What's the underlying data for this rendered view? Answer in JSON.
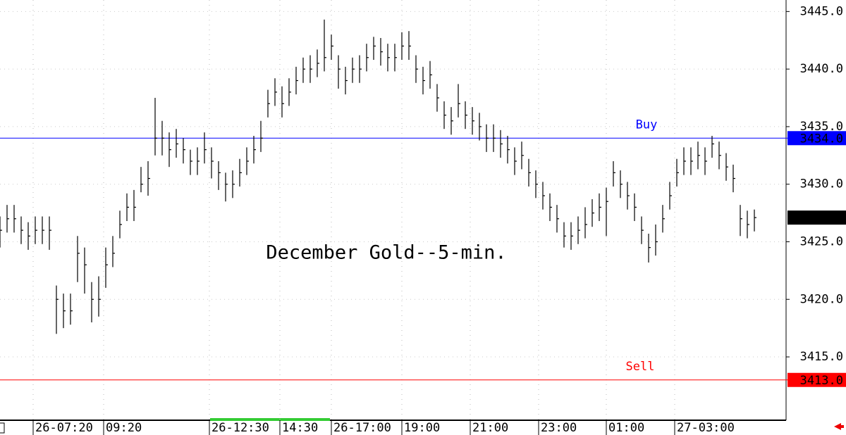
{
  "chart_data": {
    "type": "ohlc",
    "title": "December Gold--5-min.",
    "color": "#000000",
    "grid": true,
    "xlim": [
      0,
      111.5
    ],
    "ylim": [
      3409.5,
      3446
    ],
    "yticks": [
      {
        "value": 3415,
        "label": "3415.0"
      },
      {
        "value": 3420,
        "label": "3420.0"
      },
      {
        "value": 3425,
        "label": "3425.0"
      },
      {
        "value": 3430,
        "label": "3430.0"
      },
      {
        "value": 3435,
        "label": "3435.0"
      },
      {
        "value": 3440,
        "label": "3440.0"
      },
      {
        "value": 3445,
        "label": "3445.0"
      }
    ],
    "xticks": [
      {
        "value": 4.7,
        "label": "26-07:20"
      },
      {
        "value": 14.7,
        "label": "09:20"
      },
      {
        "value": 29.7,
        "label": "26-12:30"
      },
      {
        "value": 39.7,
        "label": "14:30"
      },
      {
        "value": 47,
        "label": "26-17:00"
      },
      {
        "value": 57,
        "label": "19:00"
      },
      {
        "value": 66.7,
        "label": "21:00"
      },
      {
        "value": 76.4,
        "label": "23:00"
      },
      {
        "value": 86,
        "label": "01:00"
      },
      {
        "value": 95.7,
        "label": "27-03:00"
      }
    ],
    "levels": [
      {
        "name": "Buy",
        "value": 3434,
        "label": "3434.0",
        "color": "#0000ff"
      },
      {
        "name": "Sell",
        "value": 3413,
        "label": "3413.0",
        "color": "#ff0000"
      }
    ],
    "last_price": {
      "value": 3427.1,
      "label": "3427.1"
    },
    "high": [
      3427.2,
      3428.2,
      3428.2,
      3427.2,
      3426.7,
      3427.2,
      3427.2,
      3427.2,
      3421.2,
      3420.5,
      3420.5,
      3425.5,
      3424.5,
      3421.5,
      3422,
      3424.5,
      3425.5,
      3427.7,
      3429.2,
      3429.5,
      3431.5,
      3432,
      3437.5,
      3435.5,
      3434.5,
      3434.8,
      3434,
      3433,
      3433.2,
      3434.5,
      3433.2,
      3432,
      3431,
      3431.2,
      3432.2,
      3433.2,
      3434.2,
      3435.5,
      3438.2,
      3439.2,
      3438.5,
      3439.2,
      3440.2,
      3441,
      3441.2,
      3441.7,
      3444.3,
      3443,
      3441.2,
      3440.2,
      3441,
      3441.2,
      3442.2,
      3442.8,
      3442.7,
      3442.2,
      3442.2,
      3443.2,
      3443.3,
      3441.2,
      3440.2,
      3440.7,
      3438.7,
      3437.2,
      3436.7,
      3438.7,
      3437.2,
      3436.7,
      3436.2,
      3435.2,
      3435.2,
      3434.7,
      3434.2,
      3433.2,
      3433.7,
      3432.2,
      3431.2,
      3430.2,
      3429.2,
      3428.2,
      3426.7,
      3426.7,
      3427.2,
      3428,
      3428.7,
      3429.2,
      3429.7,
      3432,
      3431.2,
      3430.2,
      3429.2,
      3427.2,
      3425.7,
      3426.5,
      3428.2,
      3430.2,
      3432.2,
      3433.2,
      3433.2,
      3433.7,
      3433.2,
      3434.2,
      3433.7,
      3432.7,
      3431.7,
      3428.2,
      3427.7,
      3427.8
    ],
    "low": [
      3424.5,
      3425.8,
      3425.8,
      3424.8,
      3424.3,
      3424.8,
      3424.8,
      3424.3,
      3417,
      3417.5,
      3417.8,
      3421.5,
      3420.5,
      3418,
      3418.5,
      3421,
      3422.8,
      3425.3,
      3426.8,
      3426.8,
      3429.3,
      3429,
      3432.5,
      3432.5,
      3431.5,
      3432.3,
      3431.8,
      3430.8,
      3430.8,
      3431.8,
      3430.5,
      3429.5,
      3428.5,
      3428.8,
      3429.8,
      3430.8,
      3431.8,
      3432.8,
      3435.8,
      3436.8,
      3435.8,
      3436.8,
      3437.8,
      3438.8,
      3438.8,
      3439.3,
      3439.8,
      3440.8,
      3438.3,
      3437.8,
      3438.8,
      3438.8,
      3439.8,
      3440.8,
      3440.3,
      3439.8,
      3439.8,
      3440.8,
      3440.8,
      3438.8,
      3437.8,
      3438.3,
      3436.3,
      3434.8,
      3434.3,
      3435.8,
      3434.8,
      3434.3,
      3433.8,
      3432.8,
      3432.8,
      3432.3,
      3431.8,
      3430.8,
      3431.3,
      3429.8,
      3428.8,
      3427.8,
      3426.8,
      3425.8,
      3424.5,
      3424.3,
      3424.8,
      3425.3,
      3426.3,
      3426.8,
      3425.5,
      3429.8,
      3428.8,
      3427.8,
      3426.8,
      3424.8,
      3423.2,
      3423.8,
      3425.8,
      3427.8,
      3429.8,
      3430.8,
      3430.8,
      3431.3,
      3430.8,
      3432.3,
      3431.3,
      3430.3,
      3429.3,
      3425.5,
      3425.3,
      3425.9
    ],
    "close": [
      3426,
      3427,
      3427,
      3426,
      3425.5,
      3426,
      3426,
      3426,
      3420,
      3419,
      3419,
      3424,
      3423,
      3420,
      3420,
      3423,
      3424,
      3426.5,
      3428,
      3428,
      3430,
      3430.5,
      3434,
      3434,
      3433,
      3433.5,
      3433,
      3432,
      3432,
      3433,
      3432,
      3431,
      3430,
      3430,
      3431,
      3432,
      3433,
      3434,
      3437,
      3438,
      3437,
      3438,
      3439,
      3440,
      3440,
      3440.5,
      3441,
      3442,
      3440,
      3439,
      3440,
      3440,
      3441,
      3442,
      3441.5,
      3441,
      3441,
      3442,
      3442,
      3440,
      3439,
      3439.5,
      3437.5,
      3436,
      3435.5,
      3437,
      3436,
      3435.5,
      3435,
      3434,
      3434,
      3433.5,
      3433,
      3432,
      3432.5,
      3431,
      3430,
      3429,
      3428,
      3427,
      3425.5,
      3425.5,
      3426,
      3426.5,
      3427.5,
      3428,
      3428.5,
      3431,
      3430,
      3429,
      3428,
      3426,
      3424.5,
      3425,
      3427,
      3429,
      3431,
      3432,
      3432,
      3432.5,
      3432,
      3433.5,
      3432.5,
      3431.5,
      3430.5,
      3427,
      3426.5,
      3427.1
    ]
  }
}
